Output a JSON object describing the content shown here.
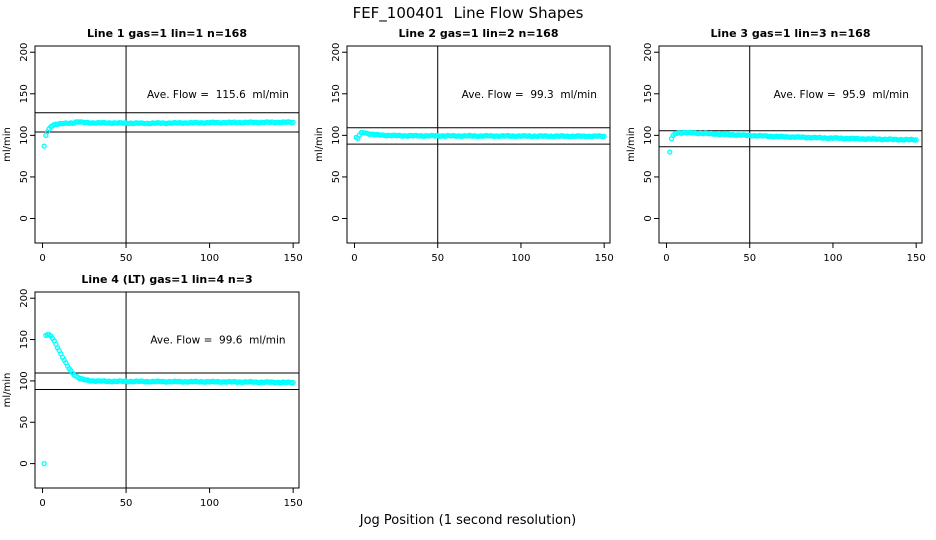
{
  "figure": {
    "title": "FEF_100401  Line Flow Shapes",
    "xlabel": "Jog Position (1 second resolution)"
  },
  "chart_data": [
    {
      "type": "scatter",
      "title": "Line 1 gas=1 lin=1 n=168",
      "annotation": "Ave. Flow =  115.6  ml/min",
      "ave_flow_ml_min": 115.6,
      "n": 168,
      "ylabel": "ml/min",
      "x_ticks": [
        0,
        50,
        100,
        150
      ],
      "y_ticks": [
        0,
        50,
        100,
        150,
        200
      ],
      "xlim": [
        0,
        150
      ],
      "ylim": [
        0,
        200
      ],
      "grid": false,
      "legend": false,
      "vline_x": 50,
      "hlines": [
        127.2,
        104.0
      ],
      "marker_color": "#00FFFF",
      "outliers": [
        [
          1,
          87
        ]
      ],
      "profile": [
        [
          2,
          100
        ],
        [
          3,
          104.5
        ],
        [
          4,
          108
        ],
        [
          5,
          110.5
        ],
        [
          6,
          112
        ],
        [
          7,
          113
        ],
        [
          8,
          113.6
        ],
        [
          10,
          114
        ],
        [
          14,
          114.3
        ],
        [
          18,
          114.8
        ],
        [
          20,
          116.2
        ],
        [
          22,
          116.4
        ],
        [
          24,
          115.4
        ],
        [
          30,
          115
        ],
        [
          40,
          115
        ],
        [
          50,
          114.7
        ],
        [
          60,
          114.5
        ],
        [
          75,
          114.8
        ],
        [
          90,
          115.1
        ],
        [
          110,
          115.4
        ],
        [
          130,
          115.6
        ],
        [
          150,
          115.8
        ]
      ]
    },
    {
      "type": "scatter",
      "title": "Line 2 gas=1 lin=2 n=168",
      "annotation": "Ave. Flow =  99.3  ml/min",
      "ave_flow_ml_min": 99.3,
      "n": 168,
      "ylabel": "ml/min",
      "x_ticks": [
        0,
        50,
        100,
        150
      ],
      "y_ticks": [
        0,
        50,
        100,
        150,
        200
      ],
      "xlim": [
        0,
        150
      ],
      "ylim": [
        0,
        200
      ],
      "grid": false,
      "legend": false,
      "vline_x": 50,
      "hlines": [
        109.2,
        89.4
      ],
      "marker_color": "#00FFFF",
      "outliers": [],
      "profile": [
        [
          1,
          97.5
        ],
        [
          2,
          96.3
        ],
        [
          3,
          100.5
        ],
        [
          4,
          102.6
        ],
        [
          5,
          103.3
        ],
        [
          6,
          103.2
        ],
        [
          7,
          102.7
        ],
        [
          8,
          102.2
        ],
        [
          10,
          101.4
        ],
        [
          12,
          100.9
        ],
        [
          15,
          100.4
        ],
        [
          20,
          100
        ],
        [
          25,
          99.7
        ],
        [
          30,
          99.5
        ],
        [
          45,
          99.4
        ],
        [
          60,
          99.3
        ],
        [
          90,
          99.2
        ],
        [
          120,
          99
        ],
        [
          150,
          98.9
        ]
      ]
    },
    {
      "type": "scatter",
      "title": "Line 3 gas=1 lin=3 n=168",
      "annotation": "Ave. Flow =  95.9  ml/min",
      "ave_flow_ml_min": 95.9,
      "n": 168,
      "ylabel": "ml/min",
      "x_ticks": [
        0,
        50,
        100,
        150
      ],
      "y_ticks": [
        0,
        50,
        100,
        150,
        200
      ],
      "xlim": [
        0,
        150
      ],
      "ylim": [
        0,
        200
      ],
      "grid": false,
      "legend": false,
      "vline_x": 50,
      "hlines": [
        105.5,
        86.3
      ],
      "marker_color": "#00FFFF",
      "outliers": [
        [
          2,
          80
        ]
      ],
      "profile": [
        [
          3,
          96
        ],
        [
          4,
          100
        ],
        [
          5,
          101.8
        ],
        [
          6,
          102.6
        ],
        [
          8,
          103.1
        ],
        [
          10,
          103.3
        ],
        [
          15,
          103
        ],
        [
          20,
          102.6
        ],
        [
          25,
          102.1
        ],
        [
          30,
          101.6
        ],
        [
          40,
          100.7
        ],
        [
          50,
          99.9
        ],
        [
          60,
          99.1
        ],
        [
          70,
          98.4
        ],
        [
          80,
          97.8
        ],
        [
          90,
          97.2
        ],
        [
          100,
          96.7
        ],
        [
          110,
          96.2
        ],
        [
          120,
          95.7
        ],
        [
          130,
          95.3
        ],
        [
          140,
          94.9
        ],
        [
          150,
          94.6
        ]
      ]
    },
    {
      "type": "scatter",
      "title": "Line 4 (LT) gas=1 lin=4 n=3",
      "annotation": "Ave. Flow =  99.6  ml/min",
      "ave_flow_ml_min": 99.6,
      "n": 3,
      "ylabel": "ml/min",
      "x_ticks": [
        0,
        50,
        100,
        150
      ],
      "y_ticks": [
        0,
        50,
        100,
        150,
        200
      ],
      "xlim": [
        0,
        150
      ],
      "ylim": [
        0,
        200
      ],
      "grid": false,
      "legend": false,
      "vline_x": 50,
      "hlines": [
        109.6,
        89.6
      ],
      "marker_color": "#00FFFF",
      "outliers": [
        [
          1,
          0
        ]
      ],
      "profile": [
        [
          2,
          155
        ],
        [
          3,
          156
        ],
        [
          4,
          155.8
        ],
        [
          5,
          154.3
        ],
        [
          6,
          151.8
        ],
        [
          7,
          148.4
        ],
        [
          8,
          144.6
        ],
        [
          9,
          140.6
        ],
        [
          10,
          136.6
        ],
        [
          11,
          132.6
        ],
        [
          12,
          128.7
        ],
        [
          13,
          124.9
        ],
        [
          14,
          121.3
        ],
        [
          15,
          117.9
        ],
        [
          16,
          114.8
        ],
        [
          17,
          112.1
        ],
        [
          18,
          109.7
        ],
        [
          19,
          107.6
        ],
        [
          20,
          105.9
        ],
        [
          22,
          103.4
        ],
        [
          24,
          101.9
        ],
        [
          26,
          101
        ],
        [
          28,
          100.4
        ],
        [
          30,
          100.1
        ],
        [
          35,
          99.7
        ],
        [
          40,
          99.5
        ],
        [
          50,
          99.4
        ],
        [
          60,
          99.3
        ],
        [
          80,
          99.1
        ],
        [
          100,
          99
        ],
        [
          120,
          98.7
        ],
        [
          140,
          98.3
        ],
        [
          150,
          98
        ]
      ]
    }
  ]
}
